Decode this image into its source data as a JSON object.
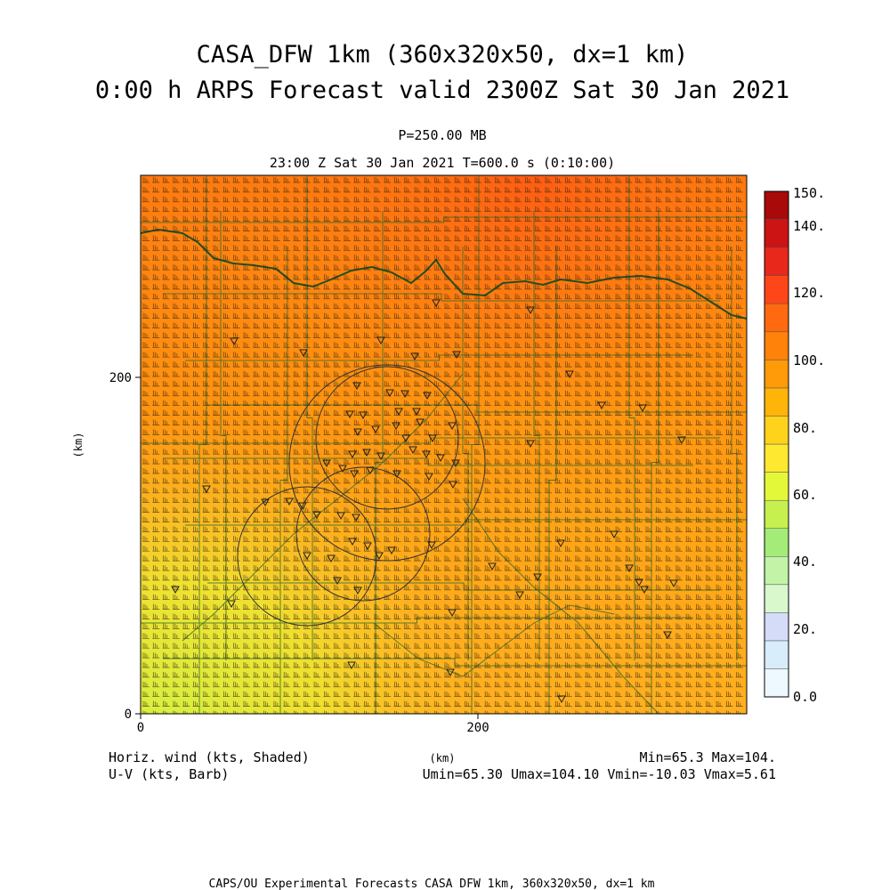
{
  "title": {
    "line1": "CASA_DFW 1km (360x320x50, dx=1 km)",
    "line2": "0:00 h ARPS Forecast valid 2300Z Sat 30 Jan 2021"
  },
  "subtitle": {
    "level": "P=250.00 MB",
    "time": "23:00 Z Sat 30 Jan 2021   T=600.0 s (0:10:00)"
  },
  "axes": {
    "x_ticks": [
      "0",
      "200"
    ],
    "y_ticks": [
      "0",
      "200"
    ],
    "x_unit": "(km)",
    "y_unit": "(km)"
  },
  "colorbar": {
    "labels": [
      "0.0",
      "20.",
      "40.",
      "60.",
      "80.",
      "100.",
      "120.",
      "140.",
      "150."
    ],
    "colors": [
      "#eef8ff",
      "#d8ecfb",
      "#d4dcf8",
      "#d9f8cc",
      "#c2f3a6",
      "#a4ec78",
      "#c6f050",
      "#e4f83a",
      "#ffe830",
      "#ffd21c",
      "#ffb40a",
      "#ff9a08",
      "#ff820a",
      "#ff6a10",
      "#ff4618",
      "#e8281a",
      "#cc1414",
      "#a80a0a"
    ]
  },
  "footer": {
    "left1": "Horiz. wind (kts, Shaded)",
    "left2": "U-V (kts, Barb)",
    "right1": "Min=65.3 Max=104.",
    "right2": "Umin=65.30 Umax=104.10 Vmin=-10.03 Vmax=5.61",
    "x_unit": "(km)",
    "credit": "CAPS/OU Experimental Forecasts  CASA DFW 1km, 360x320x50, dx=1 km"
  }
}
